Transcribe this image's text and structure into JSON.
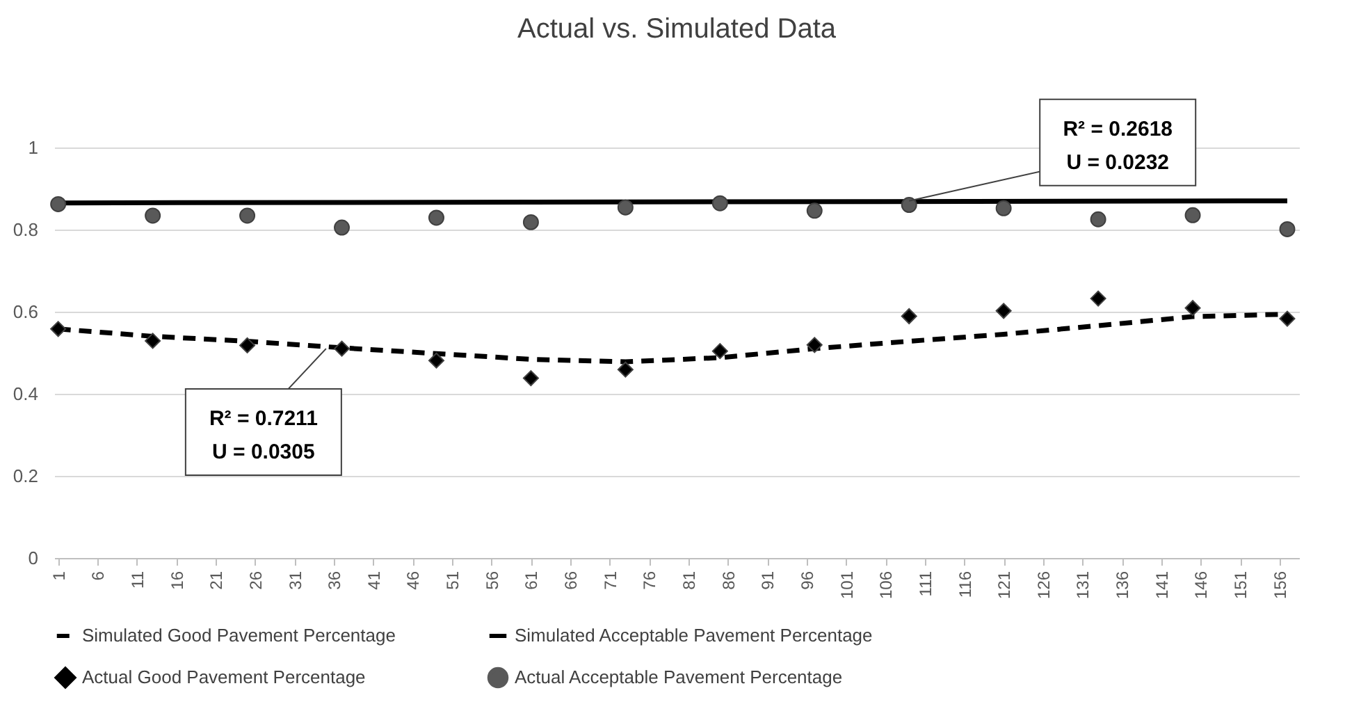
{
  "chart_data": {
    "type": "line",
    "title": "Actual vs. Simulated Data",
    "xlim": [
      0.5,
      158.5
    ],
    "xticks": [
      1,
      6,
      11,
      16,
      21,
      26,
      31,
      36,
      41,
      46,
      51,
      56,
      61,
      66,
      71,
      76,
      81,
      86,
      91,
      96,
      101,
      106,
      111,
      116,
      121,
      126,
      131,
      136,
      141,
      146,
      151,
      156
    ],
    "ylim": [
      0,
      1
    ],
    "yticks": [
      0,
      0.2,
      0.4,
      0.6,
      0.8,
      1
    ],
    "grid": "y",
    "legend": "bottom",
    "series": [
      {
        "name": "Simulated Good Pavement Percentage",
        "type": "line",
        "line_style": "dashed",
        "color": "#000000",
        "x": [
          1,
          13,
          25,
          37,
          49,
          61,
          73,
          85,
          97,
          109,
          121,
          133,
          145,
          157
        ],
        "values": [
          0.558,
          0.54,
          0.528,
          0.512,
          0.498,
          0.484,
          0.478,
          0.488,
          0.51,
          0.528,
          0.545,
          0.566,
          0.588,
          0.594
        ]
      },
      {
        "name": "Simulated Acceptable Pavement Percentage",
        "type": "line",
        "line_style": "solid",
        "color": "#000000",
        "x": [
          1,
          157
        ],
        "values": [
          0.865,
          0.87
        ]
      },
      {
        "name": "Actual Good Pavement Percentage",
        "type": "scatter",
        "marker": "diamond",
        "color": "#000000",
        "x": [
          1,
          13,
          25,
          37,
          49,
          61,
          73,
          85,
          97,
          109,
          121,
          133,
          145,
          157
        ],
        "values": [
          0.558,
          0.529,
          0.518,
          0.51,
          0.481,
          0.438,
          0.459,
          0.504,
          0.519,
          0.589,
          0.602,
          0.632,
          0.609,
          0.583
        ]
      },
      {
        "name": "Actual Acceptable Pavement Percentage",
        "type": "scatter",
        "marker": "circle",
        "color": "#595959",
        "x": [
          1,
          13,
          25,
          37,
          49,
          61,
          73,
          85,
          97,
          109,
          121,
          133,
          145,
          157
        ],
        "values": [
          0.862,
          0.834,
          0.834,
          0.805,
          0.829,
          0.818,
          0.854,
          0.864,
          0.846,
          0.86,
          0.852,
          0.825,
          0.835,
          0.801
        ]
      }
    ],
    "annotations": [
      {
        "text": "R² = 0.2618\nU = 0.0232",
        "x": 109,
        "y": 0.87
      },
      {
        "text": "R² = 0.7211\nU = 0.0305",
        "x": 35,
        "y": 0.51
      }
    ]
  }
}
